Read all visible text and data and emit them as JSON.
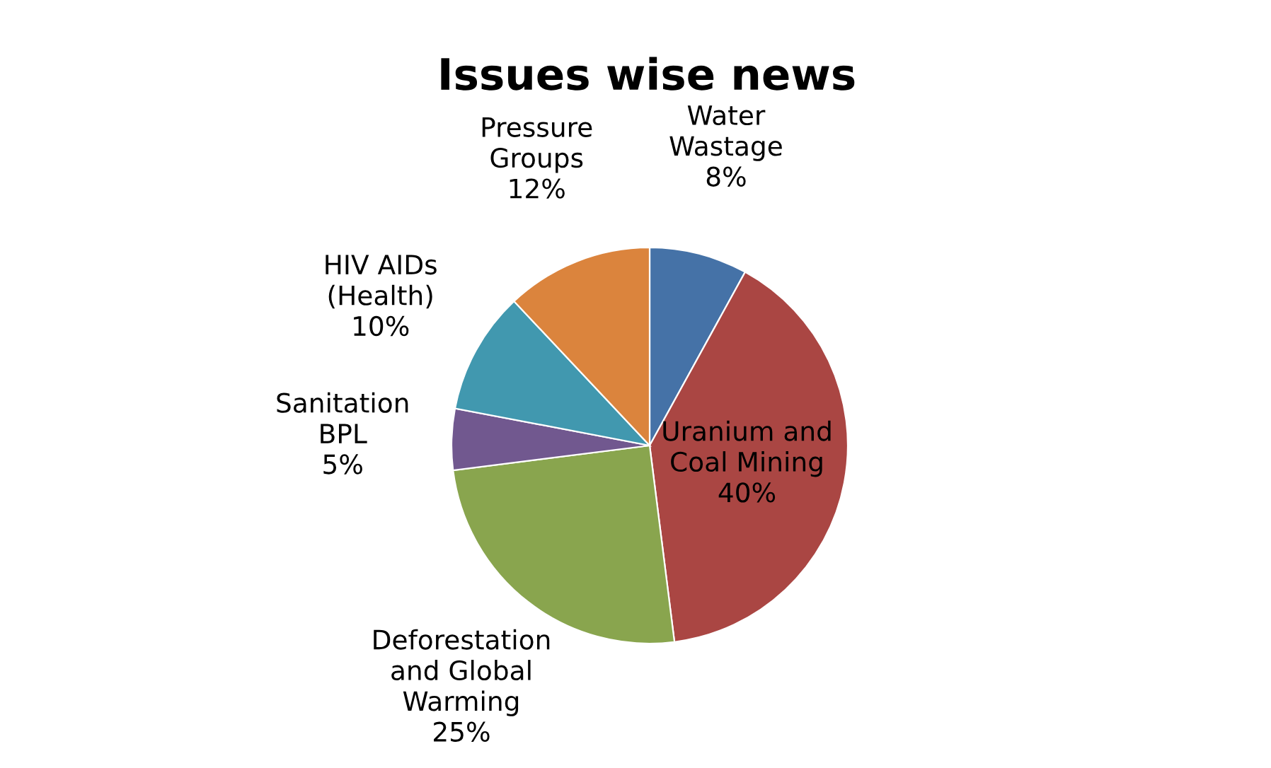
{
  "chart_data": {
    "type": "pie",
    "title": "Issues wise news",
    "categories": [
      "Water Wastage",
      "Uranium and Coal Mining",
      "Deforestation and Global Warming",
      "Sanitation BPL",
      "HIV AIDs (Health)",
      "Pressure Groups"
    ],
    "values": [
      8,
      40,
      25,
      5,
      10,
      12
    ],
    "colors": [
      "#4572a7",
      "#aa4643",
      "#89a54e",
      "#71588f",
      "#4198af",
      "#db843d"
    ],
    "value_labels": [
      "8%",
      "40%",
      "25%",
      "5%",
      "10%",
      "12%"
    ],
    "legend": false
  }
}
